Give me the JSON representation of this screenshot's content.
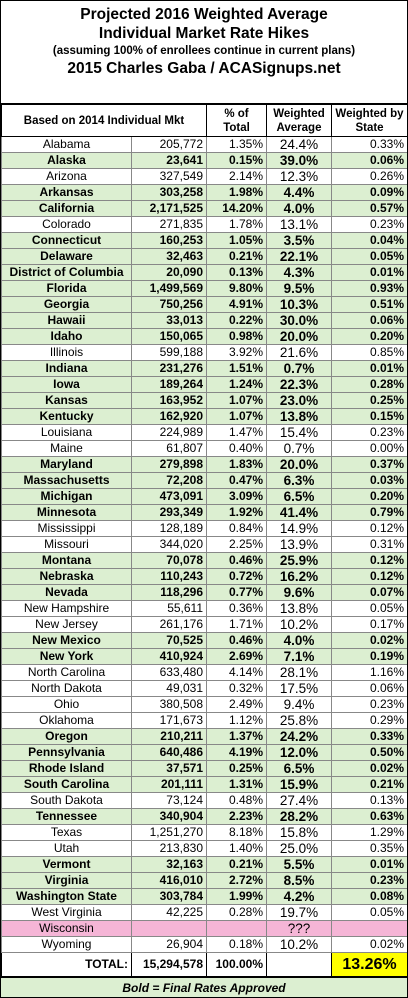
{
  "header": {
    "title_line1": "Projected 2016 Weighted Average",
    "title_line2": "Individual Market Rate Hikes",
    "subtitle": "(assuming 100% of enrollees continue in current plans)",
    "byline": "2015 Charles Gaba / ACASignups.net"
  },
  "table": {
    "columns": [
      "Based on 2014 Individual Mkt",
      "% of Total",
      "Weighted Average",
      "Weighted by State"
    ],
    "final_color": "#dcefd1",
    "rows": [
      {
        "cells": [
          "Alabama",
          "205,772",
          "1.35%",
          "24.4%",
          "0.33%"
        ],
        "final": false
      },
      {
        "cells": [
          "Alaska",
          "23,641",
          "0.15%",
          "39.0%",
          "0.06%"
        ],
        "final": true
      },
      {
        "cells": [
          "Arizona",
          "327,549",
          "2.14%",
          "12.3%",
          "0.26%"
        ],
        "final": false
      },
      {
        "cells": [
          "Arkansas",
          "303,258",
          "1.98%",
          "4.4%",
          "0.09%"
        ],
        "final": true
      },
      {
        "cells": [
          "California",
          "2,171,525",
          "14.20%",
          "4.0%",
          "0.57%"
        ],
        "final": true
      },
      {
        "cells": [
          "Colorado",
          "271,835",
          "1.78%",
          "13.1%",
          "0.23%"
        ],
        "final": false
      },
      {
        "cells": [
          "Connecticut",
          "160,253",
          "1.05%",
          "3.5%",
          "0.04%"
        ],
        "final": true
      },
      {
        "cells": [
          "Delaware",
          "32,463",
          "0.21%",
          "22.1%",
          "0.05%"
        ],
        "final": true
      },
      {
        "cells": [
          "District of Columbia",
          "20,090",
          "0.13%",
          "4.3%",
          "0.01%"
        ],
        "final": true
      },
      {
        "cells": [
          "Florida",
          "1,499,569",
          "9.80%",
          "9.5%",
          "0.93%"
        ],
        "final": true
      },
      {
        "cells": [
          "Georgia",
          "750,256",
          "4.91%",
          "10.3%",
          "0.51%"
        ],
        "final": true
      },
      {
        "cells": [
          "Hawaii",
          "33,013",
          "0.22%",
          "30.0%",
          "0.06%"
        ],
        "final": true
      },
      {
        "cells": [
          "Idaho",
          "150,065",
          "0.98%",
          "20.0%",
          "0.20%"
        ],
        "final": true
      },
      {
        "cells": [
          "Illinois",
          "599,188",
          "3.92%",
          "21.6%",
          "0.85%"
        ],
        "final": false
      },
      {
        "cells": [
          "Indiana",
          "231,276",
          "1.51%",
          "0.7%",
          "0.01%"
        ],
        "final": true
      },
      {
        "cells": [
          "Iowa",
          "189,264",
          "1.24%",
          "22.3%",
          "0.28%"
        ],
        "final": true
      },
      {
        "cells": [
          "Kansas",
          "163,952",
          "1.07%",
          "23.0%",
          "0.25%"
        ],
        "final": true
      },
      {
        "cells": [
          "Kentucky",
          "162,920",
          "1.07%",
          "13.8%",
          "0.15%"
        ],
        "final": true
      },
      {
        "cells": [
          "Louisiana",
          "224,989",
          "1.47%",
          "15.4%",
          "0.23%"
        ],
        "final": false
      },
      {
        "cells": [
          "Maine",
          "61,807",
          "0.40%",
          "0.7%",
          "0.00%"
        ],
        "final": false
      },
      {
        "cells": [
          "Maryland",
          "279,898",
          "1.83%",
          "20.0%",
          "0.37%"
        ],
        "final": true
      },
      {
        "cells": [
          "Massachusetts",
          "72,208",
          "0.47%",
          "6.3%",
          "0.03%"
        ],
        "final": true
      },
      {
        "cells": [
          "Michigan",
          "473,091",
          "3.09%",
          "6.5%",
          "0.20%"
        ],
        "final": true
      },
      {
        "cells": [
          "Minnesota",
          "293,349",
          "1.92%",
          "41.4%",
          "0.79%"
        ],
        "final": true
      },
      {
        "cells": [
          "Mississippi",
          "128,189",
          "0.84%",
          "14.9%",
          "0.12%"
        ],
        "final": false
      },
      {
        "cells": [
          "Missouri",
          "344,020",
          "2.25%",
          "13.9%",
          "0.31%"
        ],
        "final": false
      },
      {
        "cells": [
          "Montana",
          "70,078",
          "0.46%",
          "25.9%",
          "0.12%"
        ],
        "final": true
      },
      {
        "cells": [
          "Nebraska",
          "110,243",
          "0.72%",
          "16.2%",
          "0.12%"
        ],
        "final": true
      },
      {
        "cells": [
          "Nevada",
          "118,296",
          "0.77%",
          "9.6%",
          "0.07%"
        ],
        "final": true
      },
      {
        "cells": [
          "New Hampshire",
          "55,611",
          "0.36%",
          "13.8%",
          "0.05%"
        ],
        "final": false
      },
      {
        "cells": [
          "New Jersey",
          "261,176",
          "1.71%",
          "10.2%",
          "0.17%"
        ],
        "final": false
      },
      {
        "cells": [
          "New Mexico",
          "70,525",
          "0.46%",
          "4.0%",
          "0.02%"
        ],
        "final": true
      },
      {
        "cells": [
          "New York",
          "410,924",
          "2.69%",
          "7.1%",
          "0.19%"
        ],
        "final": true
      },
      {
        "cells": [
          "North Carolina",
          "633,480",
          "4.14%",
          "28.1%",
          "1.16%"
        ],
        "final": false
      },
      {
        "cells": [
          "North Dakota",
          "49,031",
          "0.32%",
          "17.5%",
          "0.06%"
        ],
        "final": false
      },
      {
        "cells": [
          "Ohio",
          "380,508",
          "2.49%",
          "9.4%",
          "0.23%"
        ],
        "final": false
      },
      {
        "cells": [
          "Oklahoma",
          "171,673",
          "1.12%",
          "25.8%",
          "0.29%"
        ],
        "final": false
      },
      {
        "cells": [
          "Oregon",
          "210,211",
          "1.37%",
          "24.2%",
          "0.33%"
        ],
        "final": true
      },
      {
        "cells": [
          "Pennsylvania",
          "640,486",
          "4.19%",
          "12.0%",
          "0.50%"
        ],
        "final": true
      },
      {
        "cells": [
          "Rhode Island",
          "37,571",
          "0.25%",
          "6.5%",
          "0.02%"
        ],
        "final": true
      },
      {
        "cells": [
          "South Carolina",
          "201,111",
          "1.31%",
          "15.9%",
          "0.21%"
        ],
        "final": true
      },
      {
        "cells": [
          "South Dakota",
          "73,124",
          "0.48%",
          "27.4%",
          "0.13%"
        ],
        "final": false
      },
      {
        "cells": [
          "Tennessee",
          "340,904",
          "2.23%",
          "28.2%",
          "0.63%"
        ],
        "final": true
      },
      {
        "cells": [
          "Texas",
          "1,251,270",
          "8.18%",
          "15.8%",
          "1.29%"
        ],
        "final": false
      },
      {
        "cells": [
          "Utah",
          "213,830",
          "1.40%",
          "25.0%",
          "0.35%"
        ],
        "final": false
      },
      {
        "cells": [
          "Vermont",
          "32,163",
          "0.21%",
          "5.5%",
          "0.01%"
        ],
        "final": true
      },
      {
        "cells": [
          "Virginia",
          "416,010",
          "2.72%",
          "8.5%",
          "0.23%"
        ],
        "final": true
      },
      {
        "cells": [
          "Washington State",
          "303,784",
          "1.99%",
          "4.2%",
          "0.08%"
        ],
        "final": true
      },
      {
        "cells": [
          "West Virginia",
          "42,225",
          "0.28%",
          "19.7%",
          "0.05%"
        ],
        "final": false
      },
      {
        "cells": [
          "Wisconsin",
          null,
          null,
          "???",
          null
        ],
        "final": false,
        "color": "#f5b5d6"
      },
      {
        "cells": [
          "Wyoming",
          "26,904",
          "0.18%",
          "10.2%",
          "0.02%"
        ],
        "final": false
      }
    ],
    "total": {
      "label": "TOTAL:",
      "enrollees": "15,294,578",
      "pct": "100.00%",
      "by_state": "13.26%"
    }
  },
  "footer": {
    "note": "Bold = Final Rates Approved"
  }
}
